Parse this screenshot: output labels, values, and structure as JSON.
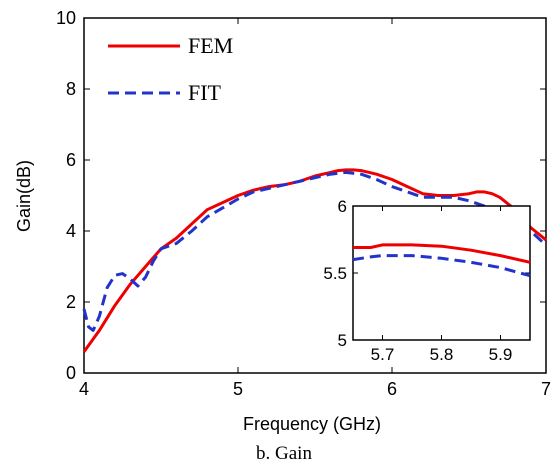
{
  "chart_data": {
    "type": "line",
    "xlabel": "Frequency (GHz)",
    "ylabel": "Gain(dB)",
    "xlim": [
      4,
      7
    ],
    "ylim": [
      0,
      10
    ],
    "xticks": [
      "4",
      "5",
      "6",
      "7"
    ],
    "yticks": [
      "0",
      "2",
      "4",
      "6",
      "8",
      "10"
    ],
    "caption": "b. Gain",
    "legend_position": "top-left",
    "series": [
      {
        "name": "FEM",
        "color": "#ee0000",
        "style": "solid",
        "x": [
          4.0,
          4.1,
          4.2,
          4.3,
          4.4,
          4.5,
          4.6,
          4.7,
          4.8,
          4.9,
          5.0,
          5.1,
          5.2,
          5.3,
          5.4,
          5.5,
          5.6,
          5.65,
          5.7,
          5.75,
          5.8,
          5.9,
          6.0,
          6.1,
          6.2,
          6.3,
          6.4,
          6.5,
          6.55,
          6.6,
          6.65,
          6.7,
          6.8,
          6.9,
          7.0
        ],
        "y": [
          0.6,
          1.2,
          1.9,
          2.5,
          3.0,
          3.5,
          3.8,
          4.2,
          4.6,
          4.8,
          5.0,
          5.15,
          5.25,
          5.3,
          5.4,
          5.55,
          5.65,
          5.7,
          5.72,
          5.72,
          5.7,
          5.6,
          5.45,
          5.25,
          5.05,
          5.0,
          5.0,
          5.05,
          5.1,
          5.1,
          5.05,
          4.95,
          4.6,
          4.1,
          3.75
        ]
      },
      {
        "name": "FIT",
        "color": "#2233cc",
        "style": "dashed",
        "x": [
          4.0,
          4.03,
          4.06,
          4.1,
          4.15,
          4.2,
          4.25,
          4.3,
          4.35,
          4.4,
          4.45,
          4.5,
          4.6,
          4.7,
          4.8,
          4.9,
          5.0,
          5.1,
          5.2,
          5.3,
          5.4,
          5.5,
          5.6,
          5.7,
          5.8,
          5.9,
          6.0,
          6.1,
          6.2,
          6.3,
          6.4,
          6.5,
          6.6,
          6.7,
          6.8,
          6.9,
          7.0
        ],
        "y": [
          1.8,
          1.3,
          1.2,
          1.6,
          2.4,
          2.75,
          2.8,
          2.65,
          2.45,
          2.7,
          3.15,
          3.5,
          3.65,
          4.0,
          4.4,
          4.65,
          4.9,
          5.1,
          5.2,
          5.3,
          5.4,
          5.5,
          5.6,
          5.65,
          5.6,
          5.45,
          5.25,
          5.1,
          4.95,
          4.95,
          4.95,
          4.85,
          4.7,
          4.5,
          4.3,
          4.0,
          3.6
        ]
      }
    ],
    "inset": {
      "xlim": [
        5.65,
        5.95
      ],
      "ylim": [
        5,
        6
      ],
      "xticks": [
        "5.7",
        "5.8",
        "5.9"
      ],
      "yticks": [
        "5",
        "5.5",
        "6"
      ],
      "series": [
        {
          "name": "FEM",
          "x": [
            5.65,
            5.68,
            5.7,
            5.75,
            5.8,
            5.85,
            5.9,
            5.95
          ],
          "y": [
            5.69,
            5.69,
            5.71,
            5.71,
            5.7,
            5.67,
            5.63,
            5.58
          ]
        },
        {
          "name": "FIT",
          "x": [
            5.65,
            5.68,
            5.7,
            5.75,
            5.8,
            5.85,
            5.9,
            5.95
          ],
          "y": [
            5.6,
            5.62,
            5.63,
            5.63,
            5.61,
            5.58,
            5.54,
            5.48
          ]
        }
      ]
    }
  }
}
